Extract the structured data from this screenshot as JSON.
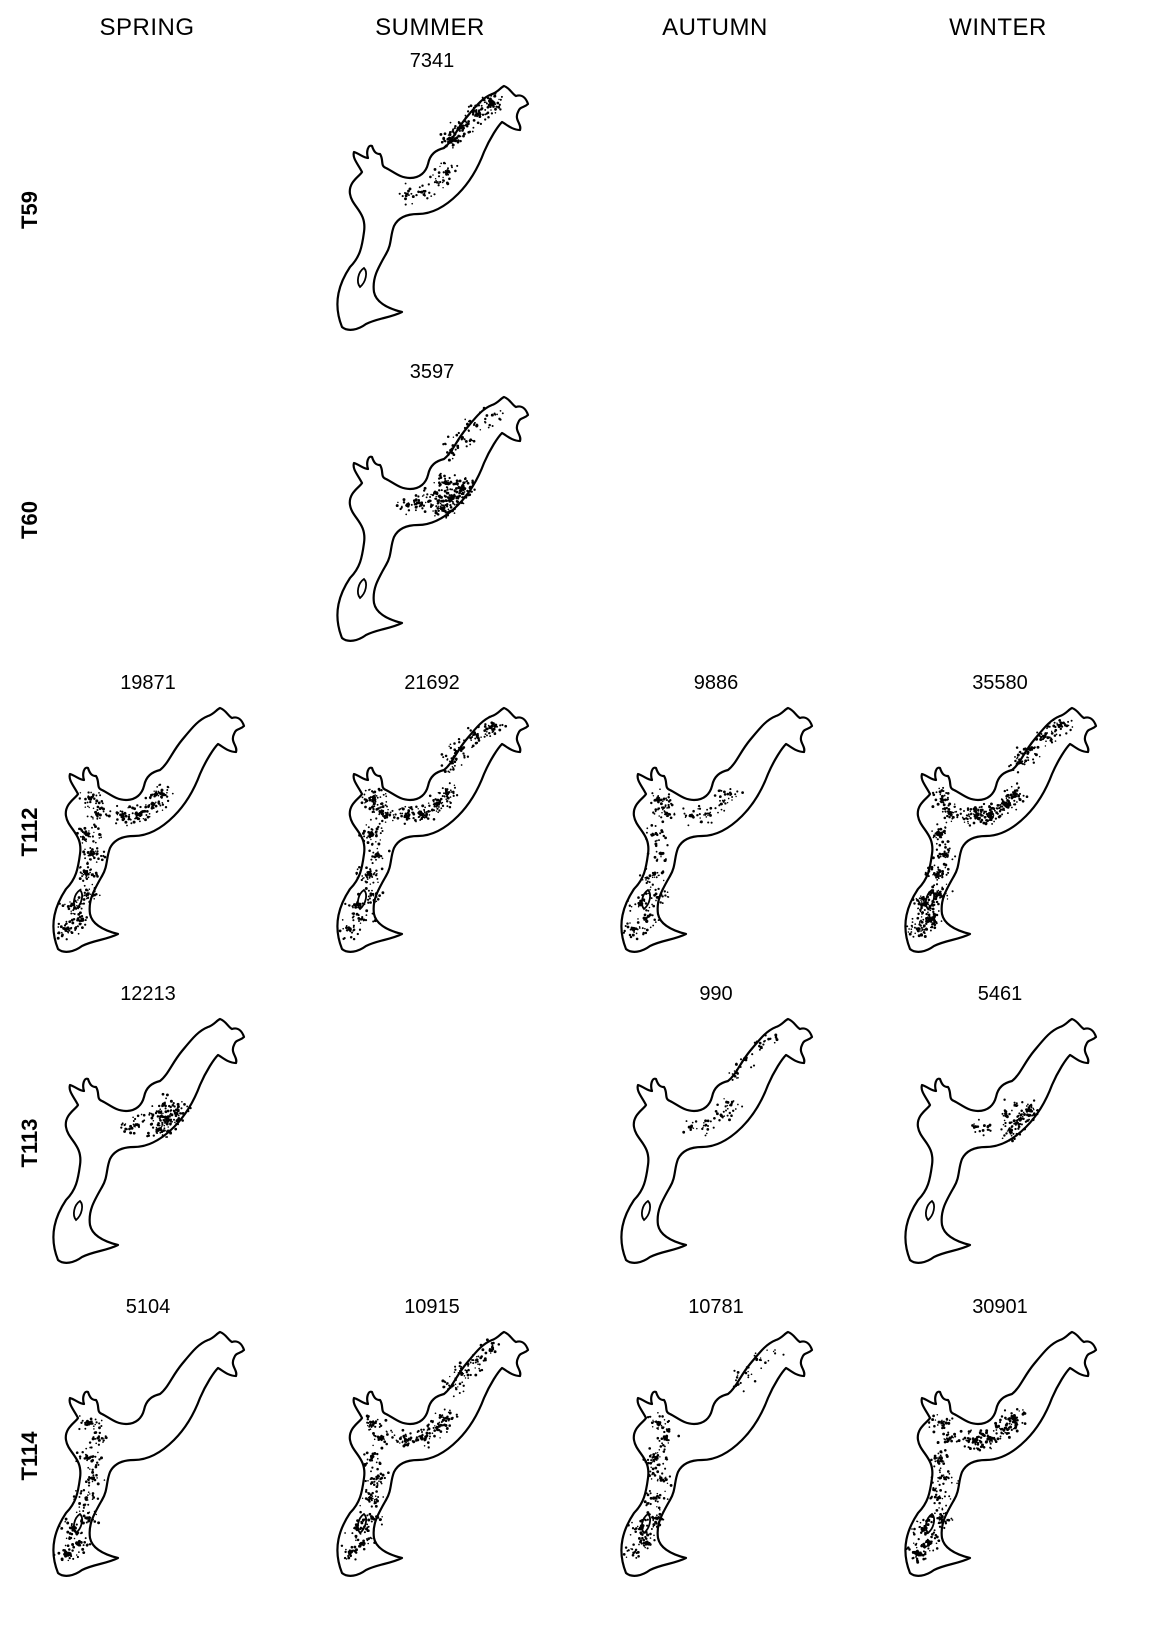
{
  "columns": [
    "SPRING",
    "SUMMER",
    "AUTUMN",
    "WINTER"
  ],
  "rows": [
    {
      "label": "T59",
      "counts": [
        null,
        "7341",
        null,
        null
      ]
    },
    {
      "label": "T60",
      "counts": [
        null,
        "3597",
        null,
        null
      ]
    },
    {
      "label": "T112",
      "counts": [
        "19871",
        "21692",
        "9886",
        "35580"
      ]
    },
    {
      "label": "T113",
      "counts": [
        "12213",
        null,
        "990",
        "5461"
      ]
    },
    {
      "label": "T114",
      "counts": [
        "5104",
        "10915",
        "10781",
        "30901"
      ]
    }
  ],
  "colors": {
    "outline": "#000000",
    "points": "#000000",
    "background": "#ffffff"
  },
  "density": [
    [
      null,
      [
        [
          "NE",
          1.0
        ],
        [
          "MID",
          0.35
        ]
      ],
      null,
      null
    ],
    [
      null,
      [
        [
          "SE",
          0.9
        ],
        [
          "MID",
          0.5
        ],
        [
          "NE",
          0.3
        ]
      ],
      null,
      null
    ],
    [
      [
        [
          "MID",
          0.7
        ],
        [
          "SW",
          0.6
        ],
        [
          "W",
          0.8
        ]
      ],
      [
        [
          "W",
          1.0
        ],
        [
          "MID",
          0.8
        ],
        [
          "NE",
          0.5
        ],
        [
          "SW",
          0.4
        ]
      ],
      [
        [
          "W",
          0.6
        ],
        [
          "SW",
          0.5
        ],
        [
          "MID",
          0.3
        ]
      ],
      [
        [
          "MID",
          1.0
        ],
        [
          "SW",
          1.0
        ],
        [
          "NE",
          0.6
        ],
        [
          "W",
          0.9
        ]
      ]
    ],
    [
      [
        [
          "SE",
          0.6
        ],
        [
          "MID",
          0.3
        ]
      ],
      null,
      [
        [
          "MID",
          0.25
        ],
        [
          "NE",
          0.2
        ]
      ],
      [
        [
          "SE",
          0.5
        ],
        [
          "MID",
          0.2
        ]
      ]
    ],
    [
      [
        [
          "W",
          0.7
        ],
        [
          "SW",
          0.6
        ]
      ],
      [
        [
          "W",
          0.8
        ],
        [
          "MID",
          0.6
        ],
        [
          "NE",
          0.4
        ],
        [
          "SW",
          0.5
        ]
      ],
      [
        [
          "W",
          0.7
        ],
        [
          "SW",
          0.5
        ],
        [
          "NE",
          0.15
        ]
      ],
      [
        [
          "MID",
          0.9
        ],
        [
          "SW",
          0.8
        ],
        [
          "W",
          0.7
        ]
      ]
    ]
  ]
}
